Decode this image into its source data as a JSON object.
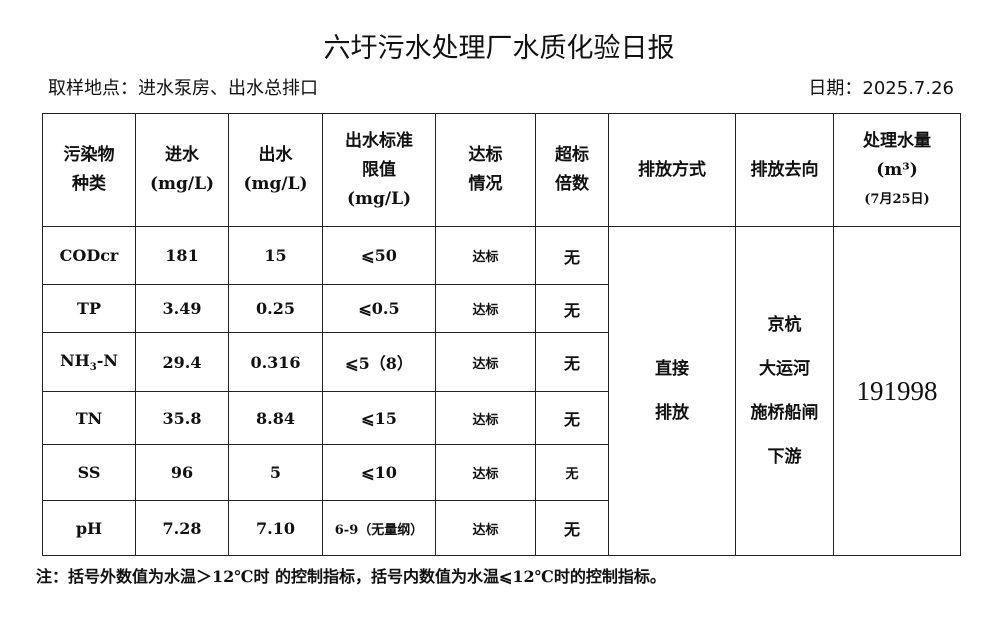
{
  "title": "六圩污水处理厂水质化验日报",
  "location": "取样地点：进水泵房、出水总排口",
  "date": "日期：2025.7.26",
  "headers": {
    "pollutant": [
      "污染物",
      "种类"
    ],
    "influent": [
      "进水",
      "(mg/L)"
    ],
    "effluent": [
      "出水",
      "(mg/L)"
    ],
    "limit": [
      "出水标准",
      "限值",
      "(mg/L)"
    ],
    "status": [
      "达标",
      "情况"
    ],
    "exceed": [
      "超标",
      "倍数"
    ],
    "discharge_mode": "排放方式",
    "discharge_dest": "排放去向",
    "volume": [
      "处理水量",
      "(m³)",
      "(7月25日)"
    ]
  },
  "rows": [
    {
      "name": "CODcr",
      "in": "181",
      "out": "15",
      "limit": "⩽50",
      "status": "达标",
      "exceed": "无"
    },
    {
      "name": "TP",
      "in": "3.49",
      "out": "0.25",
      "limit": "⩽0.5",
      "status": "达标",
      "exceed": "无"
    },
    {
      "name": "NH3-N",
      "name_main": "NH",
      "name_sub": "3",
      "name_tail": "-N",
      "in": "29.4",
      "out": "0.316",
      "limit": "⩽5（8）",
      "status": "达标",
      "exceed": "无"
    },
    {
      "name": "TN",
      "in": "35.8",
      "out": "8.84",
      "limit": "⩽15",
      "status": "达标",
      "exceed": "无"
    },
    {
      "name": "SS",
      "in": "96",
      "out": "5",
      "limit": "⩽10",
      "status": "达标",
      "exceed": "无"
    },
    {
      "name": "pH",
      "in": "7.28",
      "out": "7.10",
      "limit": "6-9（无量纲）",
      "status": "达标",
      "exceed": "无"
    }
  ],
  "discharge_mode": [
    "直接",
    "排放"
  ],
  "discharge_dest": [
    "京杭",
    "大运河",
    "施桥船闸",
    "下游"
  ],
  "volume": "191998",
  "note": "注：括号外数值为水温＞12℃时 的控制指标，括号内数值为水温⩽12℃时的控制指标。"
}
